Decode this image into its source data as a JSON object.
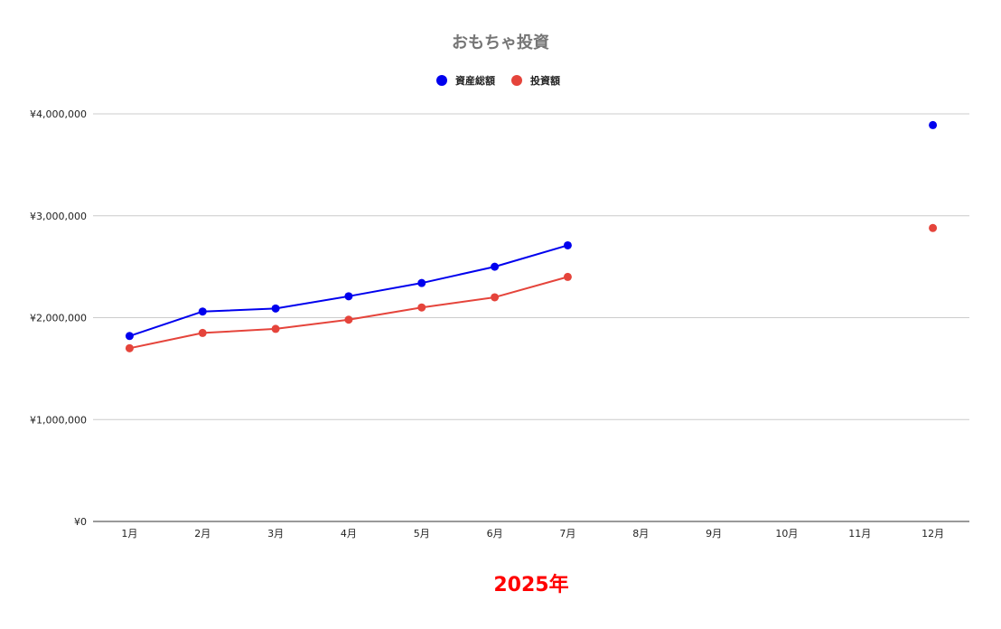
{
  "chart_data": {
    "type": "line",
    "title": "おもちゃ投資",
    "xlabel": "2025年",
    "ylabel": "",
    "categories": [
      "1月",
      "2月",
      "3月",
      "4月",
      "5月",
      "6月",
      "7月",
      "8月",
      "9月",
      "10月",
      "11月",
      "12月"
    ],
    "ylim": [
      0,
      4000000
    ],
    "yticks": [
      0,
      1000000,
      2000000,
      3000000,
      4000000
    ],
    "ytick_labels": [
      "¥0",
      "¥1,000,000",
      "¥2,000,000",
      "¥3,000,000",
      "¥4,000,000"
    ],
    "grid": true,
    "legend_position": "top",
    "series": [
      {
        "name": "資産総額",
        "color": "#0000ee",
        "values": [
          1820000,
          2060000,
          2090000,
          2210000,
          2340000,
          2500000,
          2710000,
          null,
          null,
          null,
          null,
          3890000
        ]
      },
      {
        "name": "投資額",
        "color": "#e5443b",
        "values": [
          1700000,
          1850000,
          1890000,
          1980000,
          2100000,
          2200000,
          2400000,
          null,
          null,
          null,
          null,
          2880000
        ]
      }
    ],
    "xlabel_color": "#ff0000",
    "title_color": "#757575"
  }
}
